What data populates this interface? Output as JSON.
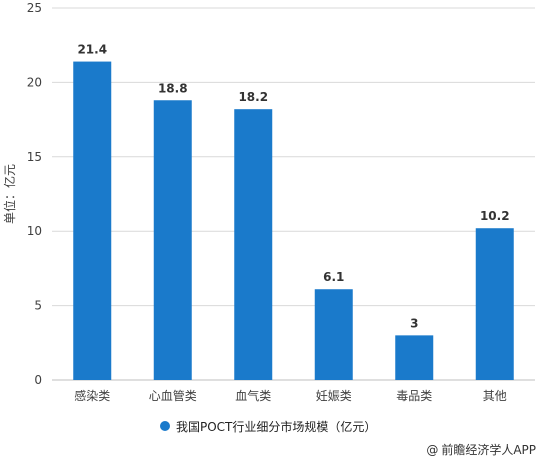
{
  "chart_data": {
    "type": "bar",
    "ylabel": "单位：亿元",
    "ylim": [
      0,
      25
    ],
    "yticks": [
      0,
      5,
      10,
      15,
      20,
      25
    ],
    "grid": true,
    "legend_position": "bottom",
    "categories": [
      "感染类",
      "心血管类",
      "血气类",
      "妊娠类",
      "毒品类",
      "其他"
    ],
    "series": [
      {
        "name": "我国POCT行业细分市场规模（亿元）",
        "values": [
          21.4,
          18.8,
          18.2,
          6.1,
          3,
          10.2
        ]
      }
    ],
    "data_labels": [
      "21.4",
      "18.8",
      "18.2",
      "6.1",
      "3",
      "10.2"
    ],
    "colors": {
      "bar": "#1a7acb",
      "grid": "#d9d9d9",
      "axis": "#bfbfbf"
    }
  },
  "source": {
    "icon": "at-sign-icon",
    "text": "前瞻经济学人APP"
  }
}
